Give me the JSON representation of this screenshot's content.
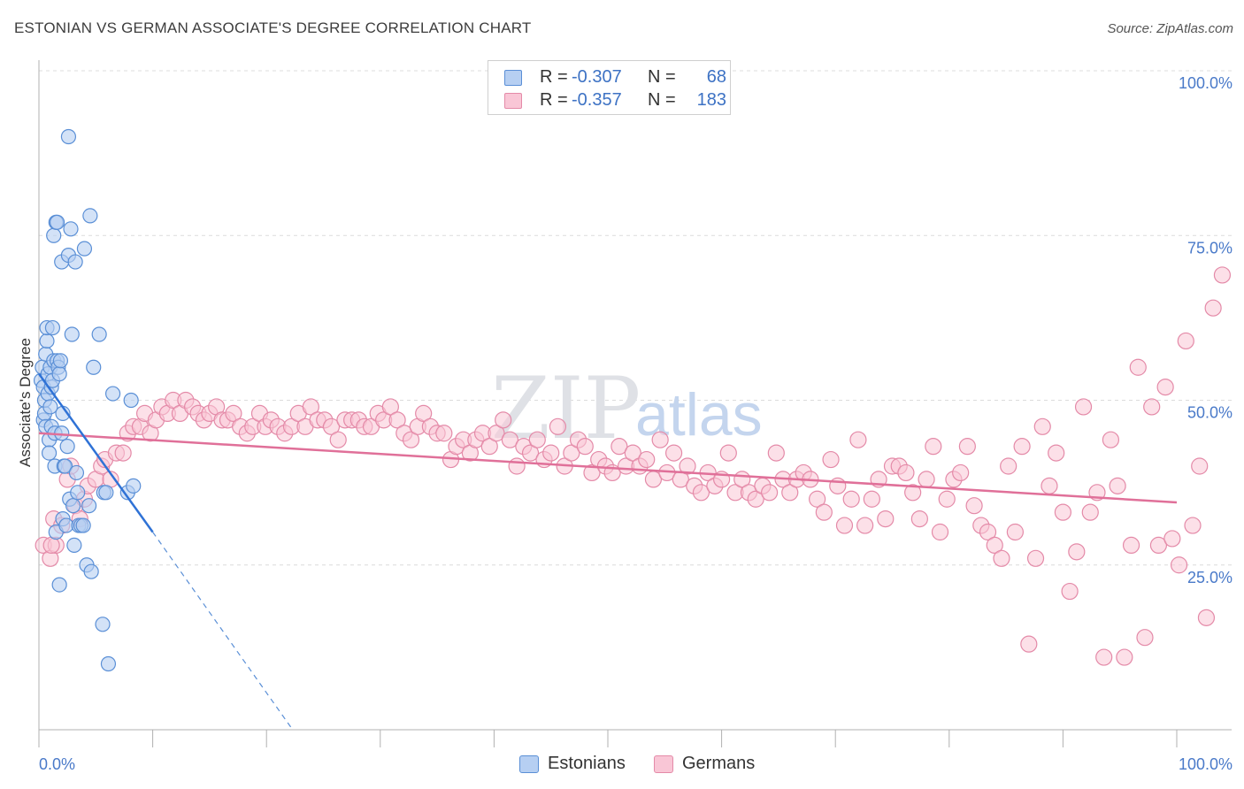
{
  "title": "ESTONIAN VS GERMAN ASSOCIATE'S DEGREE CORRELATION CHART",
  "source": "Source: ZipAtlas.com",
  "legend": {
    "rows": [
      {
        "name": "Estonians",
        "r_label": "R =",
        "r_value": "-0.307",
        "n_label": "N =",
        "n_value": "68",
        "fill": "#b6cff2",
        "stroke": "#5a8fd6"
      },
      {
        "name": "Germans",
        "r_label": "R =",
        "r_value": "-0.357",
        "n_label": "N =",
        "n_value": "183",
        "fill": "#f9c6d6",
        "stroke": "#e48aa8"
      }
    ]
  },
  "bottom_legend": {
    "estonians": "Estonians",
    "germans": "Germans"
  },
  "watermark": {
    "zip": "ZIP",
    "atlas": "atlas"
  },
  "chart_data": {
    "type": "scatter",
    "title": "ESTONIAN VS GERMAN ASSOCIATE'S DEGREE CORRELATION CHART",
    "xlabel": "",
    "ylabel": "Associate's Degree",
    "xlim": [
      0,
      100
    ],
    "ylim": [
      0,
      100
    ],
    "x_tick_labels": [
      "0.0%",
      "100.0%"
    ],
    "y_tick_labels": [
      {
        "value": 25,
        "label": "25.0%"
      },
      {
        "value": 50,
        "label": "50.0%"
      },
      {
        "value": 75,
        "label": "75.0%"
      },
      {
        "value": 100,
        "label": "100.0%"
      }
    ],
    "grid": true,
    "series": [
      {
        "name": "Estonians",
        "color": "#5a8fd6",
        "fill": "#b6cff2",
        "points": [
          [
            0.2,
            53
          ],
          [
            0.3,
            55
          ],
          [
            0.4,
            52
          ],
          [
            0.4,
            47
          ],
          [
            0.5,
            48
          ],
          [
            0.5,
            50
          ],
          [
            0.6,
            57
          ],
          [
            0.6,
            46
          ],
          [
            0.7,
            59
          ],
          [
            0.7,
            61
          ],
          [
            0.8,
            54
          ],
          [
            0.8,
            51
          ],
          [
            0.9,
            44
          ],
          [
            0.9,
            42
          ],
          [
            1.0,
            49
          ],
          [
            1.0,
            55
          ],
          [
            1.1,
            52
          ],
          [
            1.1,
            46
          ],
          [
            1.2,
            61
          ],
          [
            1.2,
            53
          ],
          [
            1.3,
            56
          ],
          [
            1.3,
            75
          ],
          [
            1.4,
            45
          ],
          [
            1.4,
            40
          ],
          [
            1.5,
            30
          ],
          [
            1.5,
            77
          ],
          [
            1.6,
            77
          ],
          [
            1.6,
            56
          ],
          [
            1.7,
            55
          ],
          [
            1.8,
            54
          ],
          [
            1.8,
            22
          ],
          [
            1.9,
            56
          ],
          [
            2.0,
            71
          ],
          [
            2.0,
            45
          ],
          [
            2.1,
            48
          ],
          [
            2.1,
            32
          ],
          [
            2.2,
            40
          ],
          [
            2.3,
            40
          ],
          [
            2.4,
            31
          ],
          [
            2.5,
            43
          ],
          [
            2.6,
            90
          ],
          [
            2.6,
            72
          ],
          [
            2.7,
            35
          ],
          [
            2.8,
            76
          ],
          [
            2.9,
            60
          ],
          [
            3.0,
            34
          ],
          [
            3.1,
            28
          ],
          [
            3.2,
            71
          ],
          [
            3.3,
            39
          ],
          [
            3.4,
            36
          ],
          [
            3.5,
            31
          ],
          [
            3.7,
            31
          ],
          [
            3.9,
            31
          ],
          [
            4.0,
            73
          ],
          [
            4.2,
            25
          ],
          [
            4.4,
            34
          ],
          [
            4.5,
            78
          ],
          [
            4.6,
            24
          ],
          [
            4.8,
            55
          ],
          [
            5.3,
            60
          ],
          [
            5.6,
            16
          ],
          [
            5.7,
            36
          ],
          [
            5.9,
            36
          ],
          [
            6.1,
            10
          ],
          [
            6.5,
            51
          ],
          [
            7.8,
            36
          ],
          [
            8.1,
            50
          ],
          [
            8.3,
            37
          ]
        ],
        "trendline": {
          "x1": 0,
          "y1": 54,
          "x2": 10,
          "y2": 30,
          "dashed_to": {
            "x": 22.3,
            "y": 0
          }
        }
      },
      {
        "name": "Germans",
        "color": "#e48aa8",
        "fill": "#f9c6d6",
        "points": [
          [
            0.4,
            28
          ],
          [
            1.0,
            26
          ],
          [
            1.3,
            32
          ],
          [
            1.5,
            28
          ],
          [
            2.0,
            31
          ],
          [
            2.5,
            38
          ],
          [
            2.8,
            40
          ],
          [
            3.2,
            34
          ],
          [
            3.6,
            32
          ],
          [
            4.0,
            35
          ],
          [
            4.3,
            37
          ],
          [
            5.0,
            38
          ],
          [
            5.5,
            40
          ],
          [
            5.8,
            41
          ],
          [
            6.3,
            38
          ],
          [
            6.8,
            42
          ],
          [
            7.4,
            42
          ],
          [
            7.8,
            45
          ],
          [
            8.3,
            46
          ],
          [
            8.9,
            46
          ],
          [
            9.3,
            48
          ],
          [
            9.8,
            45
          ],
          [
            10.3,
            47
          ],
          [
            10.8,
            49
          ],
          [
            11.3,
            48
          ],
          [
            11.8,
            50
          ],
          [
            12.4,
            48
          ],
          [
            12.9,
            50
          ],
          [
            13.5,
            49
          ],
          [
            14.0,
            48
          ],
          [
            14.5,
            47
          ],
          [
            15.0,
            48
          ],
          [
            15.6,
            49
          ],
          [
            16.1,
            47
          ],
          [
            16.6,
            47
          ],
          [
            17.1,
            48
          ],
          [
            17.7,
            46
          ],
          [
            18.3,
            45
          ],
          [
            18.8,
            46
          ],
          [
            19.4,
            48
          ],
          [
            19.9,
            46
          ],
          [
            20.4,
            47
          ],
          [
            21.0,
            46
          ],
          [
            21.6,
            45
          ],
          [
            22.2,
            46
          ],
          [
            22.8,
            48
          ],
          [
            23.4,
            46
          ],
          [
            23.9,
            49
          ],
          [
            24.5,
            47
          ],
          [
            25.1,
            47
          ],
          [
            25.7,
            46
          ],
          [
            26.3,
            44
          ],
          [
            26.9,
            47
          ],
          [
            27.5,
            47
          ],
          [
            28.1,
            47
          ],
          [
            28.6,
            46
          ],
          [
            29.2,
            46
          ],
          [
            29.8,
            48
          ],
          [
            30.3,
            47
          ],
          [
            30.9,
            49
          ],
          [
            31.5,
            47
          ],
          [
            32.1,
            45
          ],
          [
            32.7,
            44
          ],
          [
            33.3,
            46
          ],
          [
            33.8,
            48
          ],
          [
            34.4,
            46
          ],
          [
            35.0,
            45
          ],
          [
            35.6,
            45
          ],
          [
            36.2,
            41
          ],
          [
            36.7,
            43
          ],
          [
            37.3,
            44
          ],
          [
            37.9,
            42
          ],
          [
            38.4,
            44
          ],
          [
            39.0,
            45
          ],
          [
            39.6,
            43
          ],
          [
            40.2,
            45
          ],
          [
            40.8,
            47
          ],
          [
            41.4,
            44
          ],
          [
            42.0,
            40
          ],
          [
            42.6,
            43
          ],
          [
            43.2,
            42
          ],
          [
            43.8,
            44
          ],
          [
            44.4,
            41
          ],
          [
            45.0,
            42
          ],
          [
            45.6,
            46
          ],
          [
            46.2,
            40
          ],
          [
            46.8,
            42
          ],
          [
            47.4,
            44
          ],
          [
            48.0,
            43
          ],
          [
            48.6,
            39
          ],
          [
            49.2,
            41
          ],
          [
            49.8,
            40
          ],
          [
            50.4,
            39
          ],
          [
            51.0,
            43
          ],
          [
            51.6,
            40
          ],
          [
            52.2,
            42
          ],
          [
            52.8,
            40
          ],
          [
            53.4,
            41
          ],
          [
            54.0,
            38
          ],
          [
            54.6,
            44
          ],
          [
            55.2,
            39
          ],
          [
            55.8,
            42
          ],
          [
            56.4,
            38
          ],
          [
            57.0,
            40
          ],
          [
            57.6,
            37
          ],
          [
            58.2,
            36
          ],
          [
            58.8,
            39
          ],
          [
            59.4,
            37
          ],
          [
            60.0,
            38
          ],
          [
            60.6,
            42
          ],
          [
            61.2,
            36
          ],
          [
            61.8,
            38
          ],
          [
            62.4,
            36
          ],
          [
            63.0,
            35
          ],
          [
            63.6,
            37
          ],
          [
            64.2,
            36
          ],
          [
            64.8,
            42
          ],
          [
            65.4,
            38
          ],
          [
            66.0,
            36
          ],
          [
            66.6,
            38
          ],
          [
            67.2,
            39
          ],
          [
            67.8,
            38
          ],
          [
            68.4,
            35
          ],
          [
            69.0,
            33
          ],
          [
            69.6,
            41
          ],
          [
            70.2,
            37
          ],
          [
            70.8,
            31
          ],
          [
            71.4,
            35
          ],
          [
            72.0,
            44
          ],
          [
            72.6,
            31
          ],
          [
            73.2,
            35
          ],
          [
            73.8,
            38
          ],
          [
            74.4,
            32
          ],
          [
            75.0,
            40
          ],
          [
            75.6,
            40
          ],
          [
            76.2,
            39
          ],
          [
            76.8,
            36
          ],
          [
            77.4,
            32
          ],
          [
            78.0,
            38
          ],
          [
            78.6,
            43
          ],
          [
            79.2,
            30
          ],
          [
            79.8,
            35
          ],
          [
            80.4,
            38
          ],
          [
            81.0,
            39
          ],
          [
            81.6,
            43
          ],
          [
            82.2,
            34
          ],
          [
            82.8,
            31
          ],
          [
            83.4,
            30
          ],
          [
            84.0,
            28
          ],
          [
            84.6,
            26
          ],
          [
            85.2,
            40
          ],
          [
            85.8,
            30
          ],
          [
            86.4,
            43
          ],
          [
            87.0,
            13
          ],
          [
            87.6,
            26
          ],
          [
            88.2,
            46
          ],
          [
            88.8,
            37
          ],
          [
            89.4,
            42
          ],
          [
            90.0,
            33
          ],
          [
            90.6,
            21
          ],
          [
            91.2,
            27
          ],
          [
            91.8,
            49
          ],
          [
            92.4,
            33
          ],
          [
            93.0,
            36
          ],
          [
            93.6,
            11
          ],
          [
            94.2,
            44
          ],
          [
            94.8,
            37
          ],
          [
            95.4,
            11
          ],
          [
            96.0,
            28
          ],
          [
            96.6,
            55
          ],
          [
            97.2,
            14
          ],
          [
            97.8,
            49
          ],
          [
            98.4,
            28
          ],
          [
            99.0,
            52
          ],
          [
            99.6,
            29
          ],
          [
            100.2,
            25
          ],
          [
            100.8,
            59
          ],
          [
            101.4,
            31
          ],
          [
            102.0,
            40
          ],
          [
            102.6,
            17
          ],
          [
            103.2,
            64
          ],
          [
            104.0,
            69
          ],
          [
            1.1,
            28
          ]
        ],
        "trendline": {
          "x1": 0,
          "y1": 45,
          "x2": 100,
          "y2": 34.5
        }
      }
    ]
  }
}
